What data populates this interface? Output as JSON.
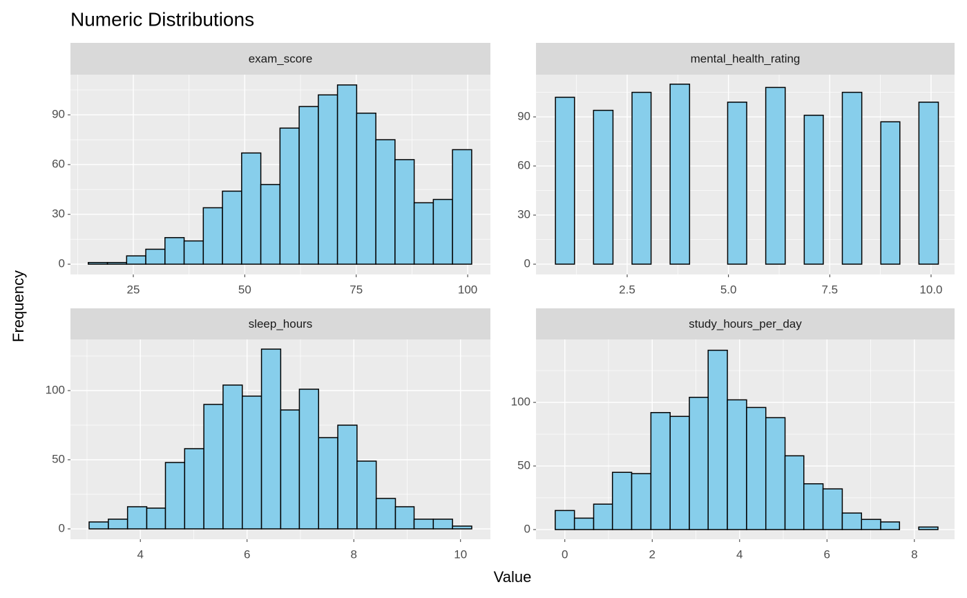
{
  "title": "Numeric Distributions",
  "x_label": "Value",
  "y_label": "Frequency",
  "chart_data": [
    {
      "type": "histogram",
      "title": "exam_score",
      "color": "#87ceeb",
      "edge_color": "#000000",
      "grid": true,
      "minor_grid": true,
      "bins": [
        14.9,
        19.2,
        23.5,
        27.8,
        32.1,
        36.4,
        40.7,
        45.0,
        49.3,
        53.6,
        57.9,
        62.2,
        66.5,
        70.8,
        75.1,
        79.4,
        83.7,
        88.0,
        92.3,
        96.6,
        100.9
      ],
      "values": [
        1,
        1,
        5,
        9,
        16,
        14,
        34,
        44,
        67,
        48,
        82,
        95,
        102,
        108,
        91,
        75,
        63,
        37,
        39,
        69
      ],
      "xlim": [
        10.9,
        105.1
      ],
      "xticks": [
        25,
        50,
        75,
        100
      ],
      "ylim": [
        -6.2,
        114.2
      ],
      "yticks": [
        0,
        30,
        60,
        90
      ]
    },
    {
      "type": "histogram",
      "title": "mental_health_rating",
      "color": "#87ceeb",
      "edge_color": "#000000",
      "grid": true,
      "minor_grid": true,
      "bins": [
        0.73,
        1.2,
        1.67,
        2.15,
        2.62,
        3.09,
        3.56,
        4.04,
        4.51,
        4.98,
        5.45,
        5.92,
        6.4,
        6.87,
        7.34,
        7.81,
        8.29,
        8.76,
        9.23,
        9.7,
        10.18
      ],
      "values": [
        102,
        0,
        94,
        0,
        105,
        0,
        110,
        0,
        0,
        99,
        0,
        108,
        0,
        91,
        0,
        105,
        0,
        87,
        0,
        99
      ],
      "xlim": [
        0.25,
        10.58
      ],
      "xticks": [
        2.5,
        {
          "value": 5,
          "label": "5.0"
        },
        7.5,
        {
          "value": 10,
          "label": "10.0"
        }
      ],
      "ylim": [
        -6.3,
        115.8
      ],
      "yticks": [
        0,
        30,
        60,
        90
      ]
    },
    {
      "type": "histogram",
      "title": "sleep_hours",
      "color": "#87ceeb",
      "edge_color": "#000000",
      "grid": true,
      "minor_grid": true,
      "bins": [
        3.04,
        3.4,
        3.76,
        4.12,
        4.47,
        4.83,
        5.19,
        5.55,
        5.91,
        6.27,
        6.63,
        6.98,
        7.34,
        7.7,
        8.06,
        8.42,
        8.78,
        9.13,
        9.49,
        9.85,
        10.21
      ],
      "values": [
        5,
        7,
        16,
        15,
        48,
        58,
        90,
        104,
        96,
        130,
        86,
        101,
        66,
        75,
        49,
        22,
        16,
        7,
        7,
        2
      ],
      "xlim": [
        2.69,
        10.56
      ],
      "xticks": [
        4,
        6,
        8,
        10
      ],
      "ylim": [
        -7.5,
        137
      ],
      "yticks": [
        0,
        50,
        100
      ]
    },
    {
      "type": "histogram",
      "title": "study_hours_per_day",
      "color": "#87ceeb",
      "edge_color": "#000000",
      "grid": true,
      "minor_grid": true,
      "bins": [
        -0.22,
        0.22,
        0.66,
        1.09,
        1.53,
        1.97,
        2.41,
        2.85,
        3.28,
        3.72,
        4.16,
        4.6,
        5.04,
        5.47,
        5.91,
        6.35,
        6.79,
        7.23,
        7.66,
        8.1,
        8.54
      ],
      "values": [
        15,
        9,
        20,
        45,
        44,
        92,
        89,
        104,
        141,
        102,
        96,
        88,
        58,
        36,
        32,
        13,
        8,
        6,
        0,
        2
      ],
      "xlim": [
        -0.66,
        8.92
      ],
      "xticks": [
        0,
        2,
        4,
        6,
        8
      ],
      "ylim": [
        -7.6,
        149.5
      ],
      "yticks": [
        0,
        50,
        100
      ]
    }
  ]
}
